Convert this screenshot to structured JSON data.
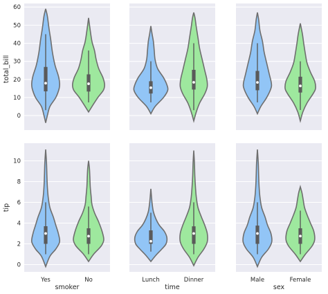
{
  "chart_data": {
    "type": "violin",
    "layout": "2x3 grid",
    "colors": {
      "first": "#92c5f6",
      "second": "#9ee89e"
    },
    "grid": true,
    "rows": [
      {
        "ylabel": "total_bill",
        "ylim": [
          -8,
          62
        ],
        "yticks": [
          0,
          10,
          20,
          30,
          40,
          50,
          60
        ]
      },
      {
        "ylabel": "tip",
        "ylim": [
          -0.7,
          11.7
        ],
        "yticks": [
          0,
          2,
          4,
          6,
          8,
          10
        ]
      }
    ],
    "columns": [
      {
        "xlabel": "smoker",
        "categories": [
          "Yes",
          "No"
        ]
      },
      {
        "xlabel": "time",
        "categories": [
          "Lunch",
          "Dinner"
        ]
      },
      {
        "xlabel": "sex",
        "categories": [
          "Male",
          "Female"
        ]
      }
    ],
    "violins": [
      {
        "row": 0,
        "col": 0,
        "cat": 0,
        "profile": [
          [
            -4,
            0
          ],
          [
            0,
            2
          ],
          [
            5,
            5
          ],
          [
            10,
            12
          ],
          [
            15,
            16
          ],
          [
            18,
            16.5
          ],
          [
            22,
            15
          ],
          [
            28,
            11
          ],
          [
            35,
            8
          ],
          [
            42,
            6
          ],
          [
            48,
            4
          ],
          [
            55,
            2
          ],
          [
            59,
            0
          ]
        ],
        "q1": 13.4,
        "median": 17.9,
        "q3": 26.9,
        "whisker": [
          3,
          45
        ]
      },
      {
        "row": 0,
        "col": 0,
        "cat": 1,
        "profile": [
          [
            2,
            0
          ],
          [
            5,
            4
          ],
          [
            10,
            11
          ],
          [
            14,
            17.5
          ],
          [
            17,
            19
          ],
          [
            21,
            17
          ],
          [
            26,
            12
          ],
          [
            31,
            9
          ],
          [
            36,
            7
          ],
          [
            41,
            4
          ],
          [
            47,
            2
          ],
          [
            54,
            0
          ]
        ],
        "q1": 13.3,
        "median": 17.6,
        "q3": 22.8,
        "whisker": [
          7.3,
          36
        ]
      },
      {
        "row": 0,
        "col": 1,
        "cat": 0,
        "profile": [
          [
            1,
            0
          ],
          [
            5,
            5
          ],
          [
            10,
            15
          ],
          [
            14,
            20
          ],
          [
            17,
            19
          ],
          [
            21,
            15
          ],
          [
            26,
            8
          ],
          [
            31,
            5
          ],
          [
            36,
            4
          ],
          [
            41,
            3
          ],
          [
            45,
            1.5
          ],
          [
            49.5,
            0
          ]
        ],
        "q1": 12.2,
        "median": 15.4,
        "q3": 19.0,
        "whisker": [
          7.3,
          30
        ]
      },
      {
        "row": 0,
        "col": 1,
        "cat": 1,
        "profile": [
          [
            -3,
            0
          ],
          [
            2,
            3
          ],
          [
            7,
            7
          ],
          [
            12,
            13
          ],
          [
            16,
            16
          ],
          [
            20,
            15.5
          ],
          [
            25,
            13
          ],
          [
            31,
            10
          ],
          [
            37,
            7
          ],
          [
            43,
            5
          ],
          [
            49,
            3
          ],
          [
            54,
            1.5
          ],
          [
            57,
            0
          ]
        ],
        "q1": 14.4,
        "median": 18.4,
        "q3": 25.3,
        "whisker": [
          3,
          40
        ]
      },
      {
        "row": 0,
        "col": 2,
        "cat": 0,
        "profile": [
          [
            1,
            0
          ],
          [
            5,
            4
          ],
          [
            10,
            11
          ],
          [
            15,
            16
          ],
          [
            18,
            16.5
          ],
          [
            23,
            14
          ],
          [
            29,
            11
          ],
          [
            35,
            8
          ],
          [
            41,
            6
          ],
          [
            47,
            3
          ],
          [
            53,
            1.5
          ],
          [
            57,
            0
          ]
        ],
        "q1": 14.0,
        "median": 18.35,
        "q3": 24.7,
        "whisker": [
          7.3,
          40
        ]
      },
      {
        "row": 0,
        "col": 2,
        "cat": 1,
        "profile": [
          [
            -3,
            0
          ],
          [
            2,
            3
          ],
          [
            7,
            8
          ],
          [
            12,
            15
          ],
          [
            15,
            18
          ],
          [
            19,
            17
          ],
          [
            24,
            12
          ],
          [
            29,
            8
          ],
          [
            34,
            6
          ],
          [
            40,
            4
          ],
          [
            45,
            2.5
          ],
          [
            51,
            0
          ]
        ],
        "q1": 12.75,
        "median": 16.4,
        "q3": 21.5,
        "whisker": [
          3.1,
          30
        ]
      }
    ],
    "violins_tip": [
      {
        "row": 1,
        "col": 0,
        "cat": 0,
        "profile": [
          [
            -0.2,
            0
          ],
          [
            0.8,
            5
          ],
          [
            1.5,
            12
          ],
          [
            2.2,
            16.5
          ],
          [
            3,
            15
          ],
          [
            3.8,
            12
          ],
          [
            4.6,
            9
          ],
          [
            5.5,
            5
          ],
          [
            6.5,
            3
          ],
          [
            7.5,
            2
          ],
          [
            8.5,
            1.5
          ],
          [
            9.8,
            1
          ],
          [
            11.1,
            0
          ]
        ],
        "q1": 2.0,
        "median": 3.0,
        "q3": 3.7,
        "whisker": [
          1,
          6
        ]
      },
      {
        "row": 1,
        "col": 0,
        "cat": 1,
        "profile": [
          [
            0.3,
            0
          ],
          [
            1,
            6
          ],
          [
            1.8,
            15
          ],
          [
            2.4,
            18
          ],
          [
            3.2,
            16
          ],
          [
            4.1,
            12
          ],
          [
            5,
            7
          ],
          [
            5.8,
            4
          ],
          [
            6.6,
            3
          ],
          [
            7.5,
            2
          ],
          [
            8.5,
            1.5
          ],
          [
            9.3,
            1
          ],
          [
            10,
            0
          ]
        ],
        "q1": 2.0,
        "median": 2.74,
        "q3": 3.5,
        "whisker": [
          1,
          5.6
        ]
      },
      {
        "row": 1,
        "col": 1,
        "cat": 0,
        "profile": [
          [
            0.3,
            0
          ],
          [
            0.9,
            6
          ],
          [
            1.5,
            13
          ],
          [
            2,
            18
          ],
          [
            2.6,
            19
          ],
          [
            3.2,
            16
          ],
          [
            3.8,
            10
          ],
          [
            4.4,
            6
          ],
          [
            5.1,
            3
          ],
          [
            5.9,
            1.5
          ],
          [
            6.8,
            0.5
          ],
          [
            7.3,
            0
          ]
        ],
        "q1": 2.0,
        "median": 2.25,
        "q3": 3.3,
        "whisker": [
          1.25,
          5
        ]
      },
      {
        "row": 1,
        "col": 1,
        "cat": 1,
        "profile": [
          [
            -0.1,
            0
          ],
          [
            0.7,
            5
          ],
          [
            1.5,
            12
          ],
          [
            2.2,
            16
          ],
          [
            3,
            16
          ],
          [
            3.8,
            13
          ],
          [
            4.6,
            9
          ],
          [
            5.5,
            5
          ],
          [
            6.5,
            3
          ],
          [
            7.5,
            2
          ],
          [
            8.5,
            1.3
          ],
          [
            9.8,
            0.8
          ],
          [
            11,
            0
          ]
        ],
        "q1": 2.0,
        "median": 3.0,
        "q3": 3.69,
        "whisker": [
          1,
          6
        ]
      },
      {
        "row": 1,
        "col": 2,
        "cat": 0,
        "profile": [
          [
            -0.2,
            0
          ],
          [
            0.7,
            5
          ],
          [
            1.5,
            13
          ],
          [
            2.2,
            17
          ],
          [
            3,
            16
          ],
          [
            3.8,
            12
          ],
          [
            4.6,
            9
          ],
          [
            5.5,
            5
          ],
          [
            6.5,
            3
          ],
          [
            7.5,
            2
          ],
          [
            8.5,
            1.5
          ],
          [
            9.8,
            1
          ],
          [
            11.1,
            0
          ]
        ],
        "q1": 2.0,
        "median": 3.0,
        "q3": 3.76,
        "whisker": [
          1,
          6
        ]
      },
      {
        "row": 1,
        "col": 2,
        "cat": 1,
        "profile": [
          [
            0.3,
            0
          ],
          [
            1,
            6
          ],
          [
            1.8,
            14
          ],
          [
            2.4,
            17
          ],
          [
            3.2,
            16
          ],
          [
            4,
            12
          ],
          [
            4.8,
            8
          ],
          [
            5.5,
            5
          ],
          [
            6.2,
            3.5
          ],
          [
            6.9,
            2
          ],
          [
            7.5,
            0
          ]
        ],
        "q1": 2.0,
        "median": 2.75,
        "q3": 3.5,
        "whisker": [
          1,
          5.2
        ]
      }
    ]
  }
}
